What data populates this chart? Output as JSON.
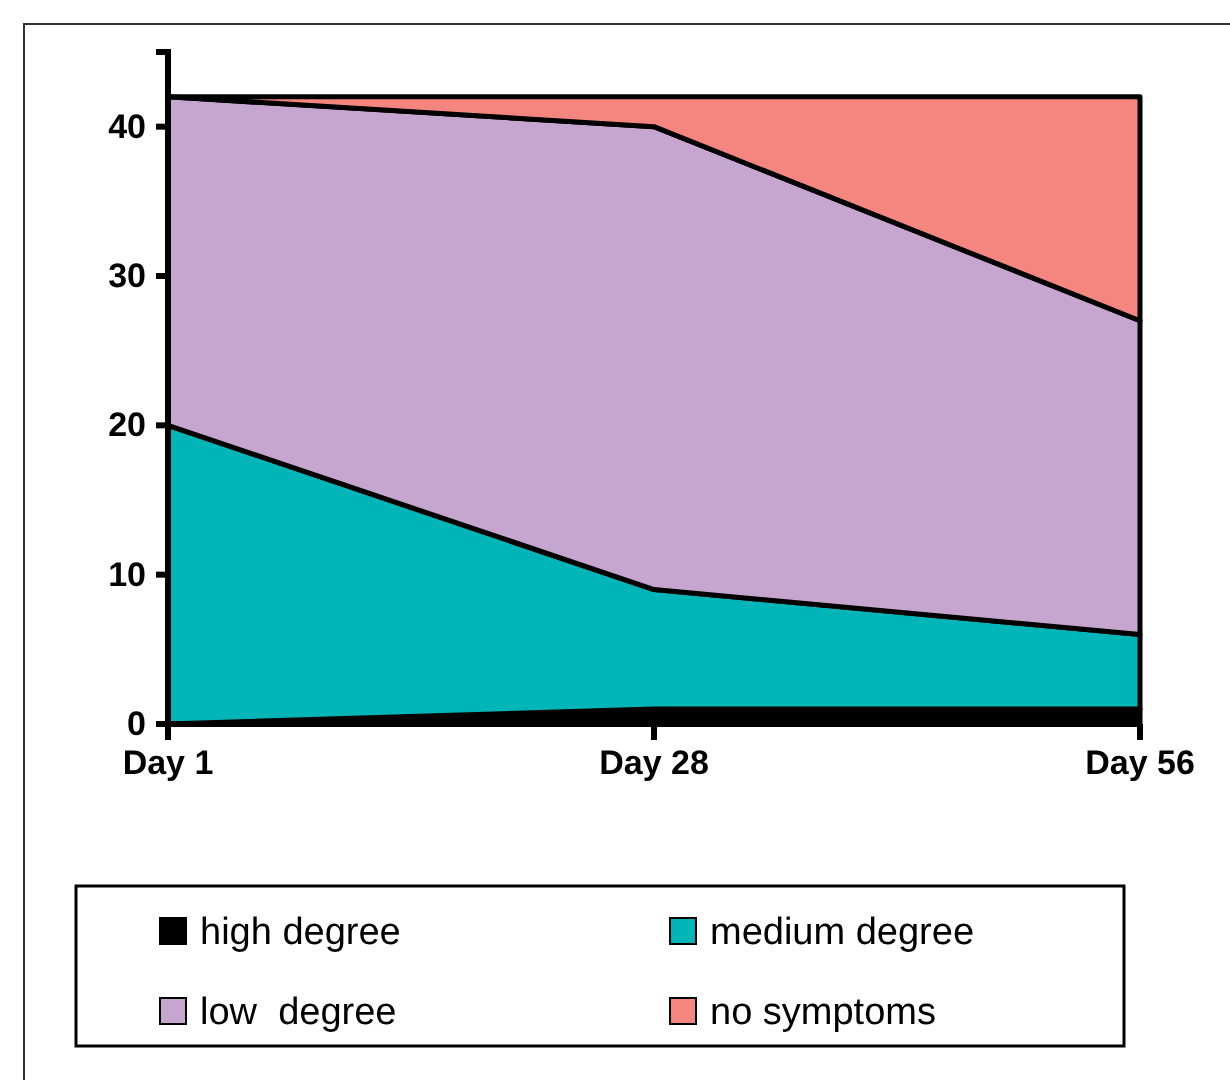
{
  "chart_data": {
    "type": "area",
    "stacked": true,
    "categories": [
      "Day 1",
      "Day 28",
      "Day 56"
    ],
    "ylim": [
      0,
      45
    ],
    "yticks": [
      0,
      10,
      20,
      30,
      40
    ],
    "legend": "bottom",
    "series": [
      {
        "name": "high degree",
        "color": "#000000",
        "values": [
          0,
          1,
          1
        ]
      },
      {
        "name": "medium degree",
        "color": "#00b5b8",
        "values": [
          20,
          8,
          5
        ]
      },
      {
        "name": "low  degree",
        "color": "#c6a6cf",
        "values": [
          22,
          31,
          21
        ]
      },
      {
        "name": "no symptoms",
        "color": "#f4857f",
        "values": [
          0,
          2,
          15
        ]
      }
    ]
  }
}
